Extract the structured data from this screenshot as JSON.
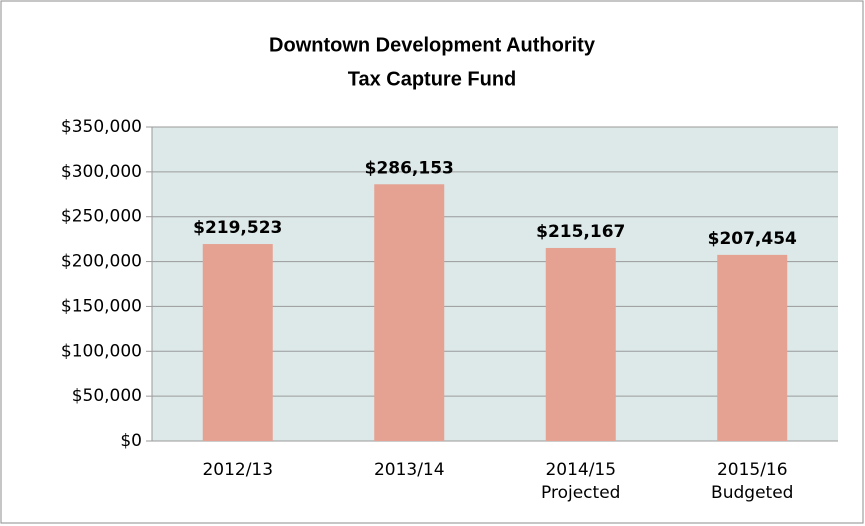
{
  "chart_data": {
    "type": "bar",
    "title": [
      "Downtown Development Authority",
      "Tax Capture Fund"
    ],
    "categories": [
      [
        "2012/13"
      ],
      [
        "2013/14"
      ],
      [
        "2014/15",
        "Projected"
      ],
      [
        "2015/16",
        "Budgeted"
      ]
    ],
    "values": [
      219523,
      286153,
      215167,
      207454
    ],
    "value_labels": [
      "$219,523",
      "$286,153",
      "$215,167",
      "$207,454"
    ],
    "color": "#e5a192",
    "ylim": [
      0,
      350000
    ],
    "yticks": [
      {
        "value": 0,
        "label": "$0"
      },
      {
        "value": 50000,
        "label": "$50,000"
      },
      {
        "value": 100000,
        "label": "$100,000"
      },
      {
        "value": 150000,
        "label": "$150,000"
      },
      {
        "value": 200000,
        "label": "$200,000"
      },
      {
        "value": 250000,
        "label": "$250,000"
      },
      {
        "value": 300000,
        "label": "$300,000"
      },
      {
        "value": 350000,
        "label": "$350,000"
      }
    ],
    "grid": true
  }
}
